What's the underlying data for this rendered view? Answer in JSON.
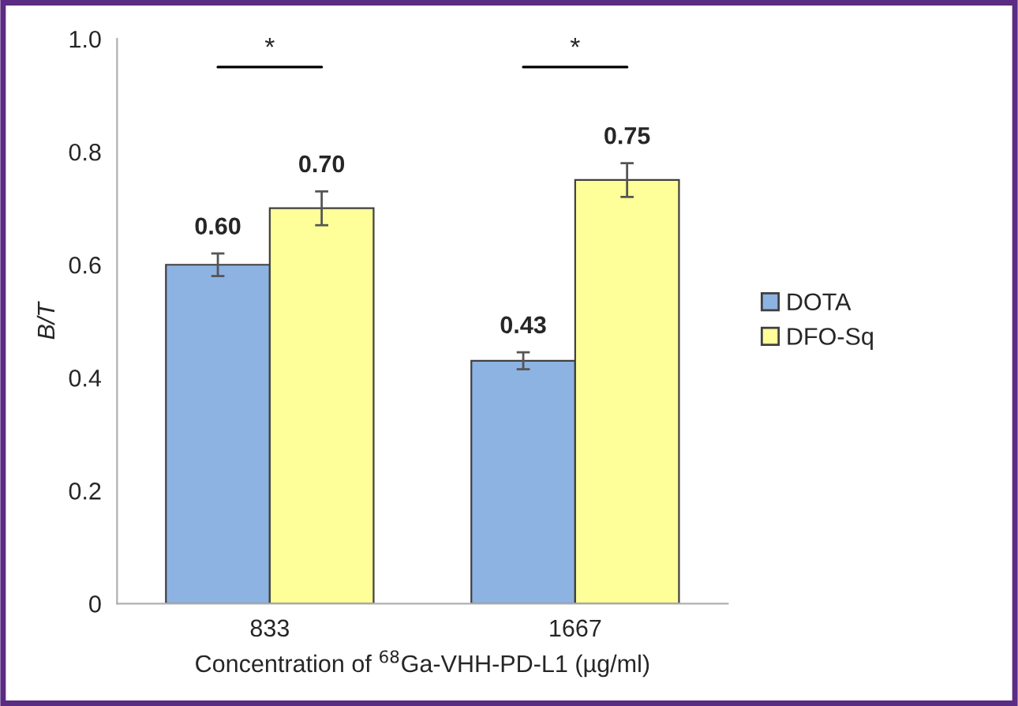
{
  "chart_data": {
    "type": "bar",
    "xlabel": "Concentration of $^{68}$Ga-VHH-PD-L1 (µg/ml)",
    "ylabel": "B/T",
    "categories": [
      "833",
      "1667"
    ],
    "series": [
      {
        "name": "DOTA",
        "color": "#8db3e2",
        "values": [
          0.6,
          0.43
        ],
        "errors": [
          0.02,
          0.015
        ],
        "value_labels": [
          "0.60",
          "0.43"
        ]
      },
      {
        "name": "DFO-Sq",
        "color": "#ffff99",
        "values": [
          0.7,
          0.75
        ],
        "errors": [
          0.03,
          0.03
        ],
        "value_labels": [
          "0.70",
          "0.75"
        ]
      }
    ],
    "ylim": [
      0,
      1.0
    ],
    "yticks": [
      0,
      {
        "value": 0.2,
        "label": "0.2"
      },
      {
        "value": 0.4,
        "label": "0.4"
      },
      {
        "value": 0.6,
        "label": "0.6"
      },
      {
        "value": 0.8,
        "label": "0.8"
      },
      {
        "value": 1.0,
        "label": "1.0"
      }
    ],
    "legend": "right",
    "grid": false,
    "annotations": [
      "*",
      "*"
    ]
  }
}
